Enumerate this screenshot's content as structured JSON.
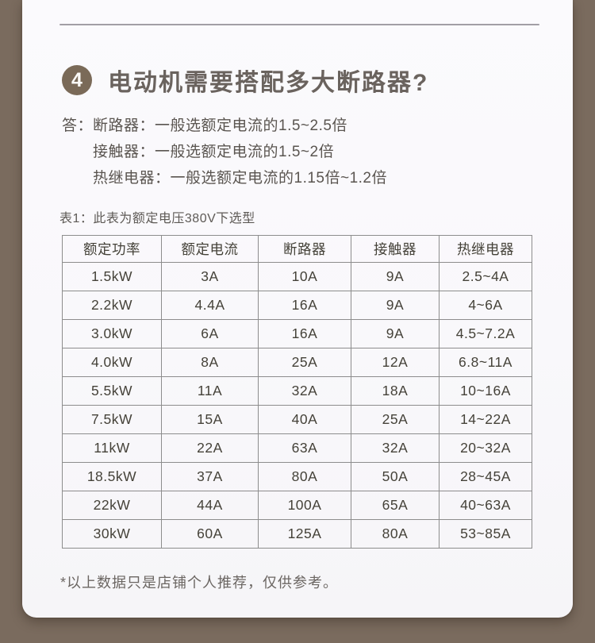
{
  "section": {
    "number": "4",
    "title": "电动机需要搭配多大断路器?"
  },
  "answer": {
    "prefix": "答：",
    "lines": [
      "断路器：一般选额定电流的1.5~2.5倍",
      "接触器：一般选额定电流的1.5~2倍",
      "热继电器：一般选额定电流的1.15倍~1.2倍"
    ]
  },
  "table": {
    "caption": "表1：此表为额定电压380V下选型"
  },
  "chart_data": {
    "type": "table",
    "title": "额定电压380V下选型",
    "columns": [
      "额定功率",
      "额定电流",
      "断路器",
      "接触器",
      "热继电器"
    ],
    "rows": [
      [
        "1.5kW",
        "3A",
        "10A",
        "9A",
        "2.5~4A"
      ],
      [
        "2.2kW",
        "4.4A",
        "16A",
        "9A",
        "4~6A"
      ],
      [
        "3.0kW",
        "6A",
        "16A",
        "9A",
        "4.5~7.2A"
      ],
      [
        "4.0kW",
        "8A",
        "25A",
        "12A",
        "6.8~11A"
      ],
      [
        "5.5kW",
        "11A",
        "32A",
        "18A",
        "10~16A"
      ],
      [
        "7.5kW",
        "15A",
        "40A",
        "25A",
        "14~22A"
      ],
      [
        "11kW",
        "22A",
        "63A",
        "32A",
        "20~32A"
      ],
      [
        "18.5kW",
        "37A",
        "80A",
        "50A",
        "28~45A"
      ],
      [
        "22kW",
        "44A",
        "100A",
        "65A",
        "40~63A"
      ],
      [
        "30kW",
        "60A",
        "125A",
        "80A",
        "53~85A"
      ]
    ]
  },
  "footnote": "*以上数据只是店铺个人推荐，仅供参考。",
  "colors": {
    "page_background": "#7a6b5e",
    "card_background": "#faf9fc",
    "badge": "#7a6a58",
    "heading_text": "#6a635e",
    "body_text": "#5a5550",
    "table_text": "#454239",
    "table_border": "#8d8d8d",
    "divider": "#a29ea5"
  }
}
